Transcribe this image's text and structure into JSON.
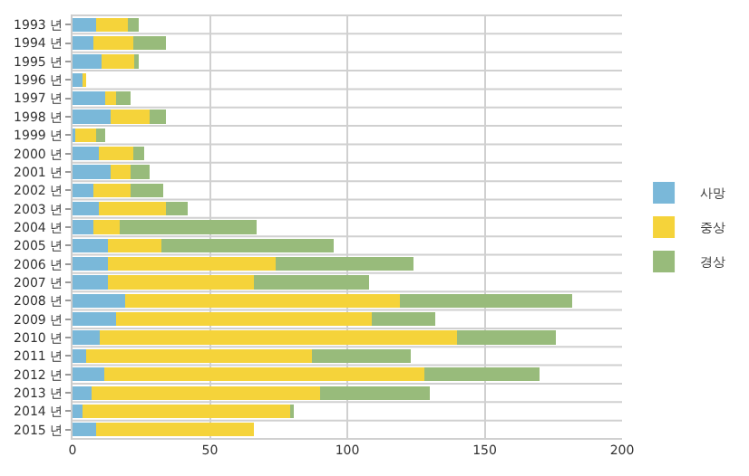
{
  "chart_data": {
    "type": "bar",
    "orientation": "horizontal",
    "stacked": true,
    "categories": [
      "1993 년",
      "1994 년",
      "1995 년",
      "1996 년",
      "1997 년",
      "1998 년",
      "1999 년",
      "2000 년",
      "2001 년",
      "2002 년",
      "2003 년",
      "2004 년",
      "2005 년",
      "2006 년",
      "2007 년",
      "2008 년",
      "2009 년",
      "2010 년",
      "2011 년",
      "2012 년",
      "2013 년",
      "2014 년",
      "2015 년"
    ],
    "series": [
      {
        "name": "사망",
        "color": "#7ab8d9",
        "values": [
          8.5,
          7.5,
          10.5,
          3.5,
          12,
          14,
          1,
          9.5,
          14,
          7.5,
          9.5,
          7.5,
          13,
          13,
          13,
          19,
          16,
          10,
          5,
          11.5,
          7,
          3.5,
          8.5
        ]
      },
      {
        "name": "중상",
        "color": "#f5d33a",
        "values": [
          11.5,
          14.5,
          12,
          1.5,
          4,
          14,
          7.5,
          12.5,
          7,
          13.5,
          24.5,
          9.5,
          19.5,
          61,
          53,
          100,
          93,
          130,
          82,
          116.5,
          83,
          76,
          57.5
        ]
      },
      {
        "name": "경상",
        "color": "#98bb7b",
        "values": [
          4,
          12,
          1.5,
          0,
          5,
          6,
          3.5,
          4,
          7,
          12,
          8,
          50,
          62.5,
          50,
          42,
          63,
          23,
          36,
          36,
          42,
          40,
          0.5,
          0
        ]
      }
    ],
    "xlim": [
      0,
      200
    ],
    "xticks": [
      0,
      50,
      100,
      150,
      200
    ],
    "grid": true,
    "legend": "right"
  }
}
